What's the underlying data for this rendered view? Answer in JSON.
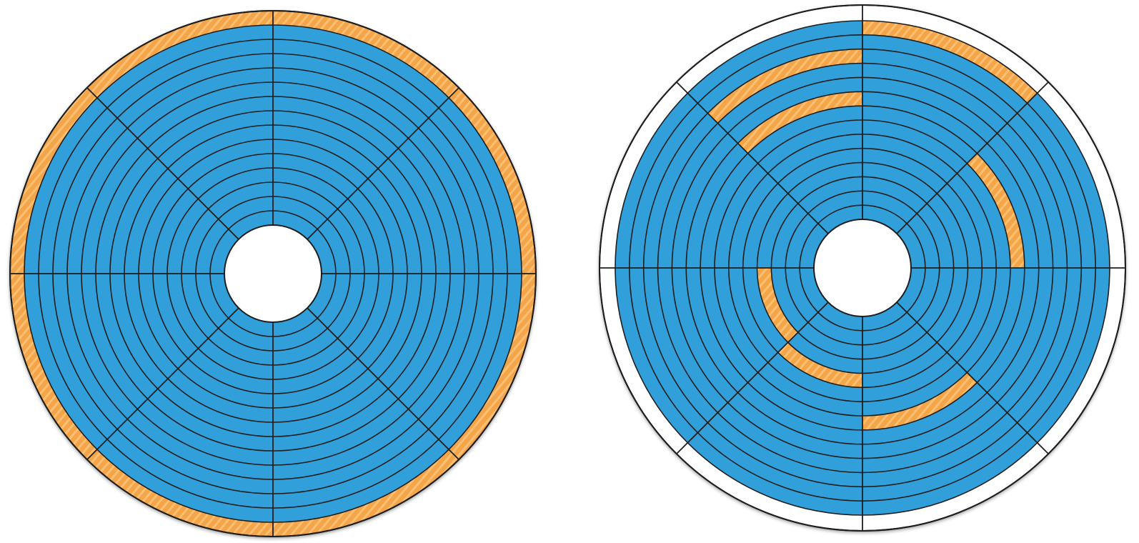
{
  "colors": {
    "data": "#31a0da",
    "reserved": "#f4a548",
    "reserved_stripe": "#ffc880",
    "empty": "#ffffff",
    "line": "#1e1e1e"
  },
  "disks": [
    {
      "name": "disk-left",
      "track_count": 14,
      "sector_count": 8,
      "outer_ring": "reserved",
      "reserved_segments": []
    },
    {
      "name": "disk-right",
      "track_count": 14,
      "sector_count": 8,
      "outer_ring": "empty",
      "reserved_segments": [
        {
          "track": 13,
          "sector": 0
        },
        {
          "track": 11,
          "sector": 7
        },
        {
          "track": 8,
          "sector": 7
        },
        {
          "track": 7,
          "sector": 1
        },
        {
          "track": 7,
          "sector": 3
        },
        {
          "track": 4,
          "sector": 4
        },
        {
          "track": 3,
          "sector": 5
        }
      ]
    }
  ]
}
